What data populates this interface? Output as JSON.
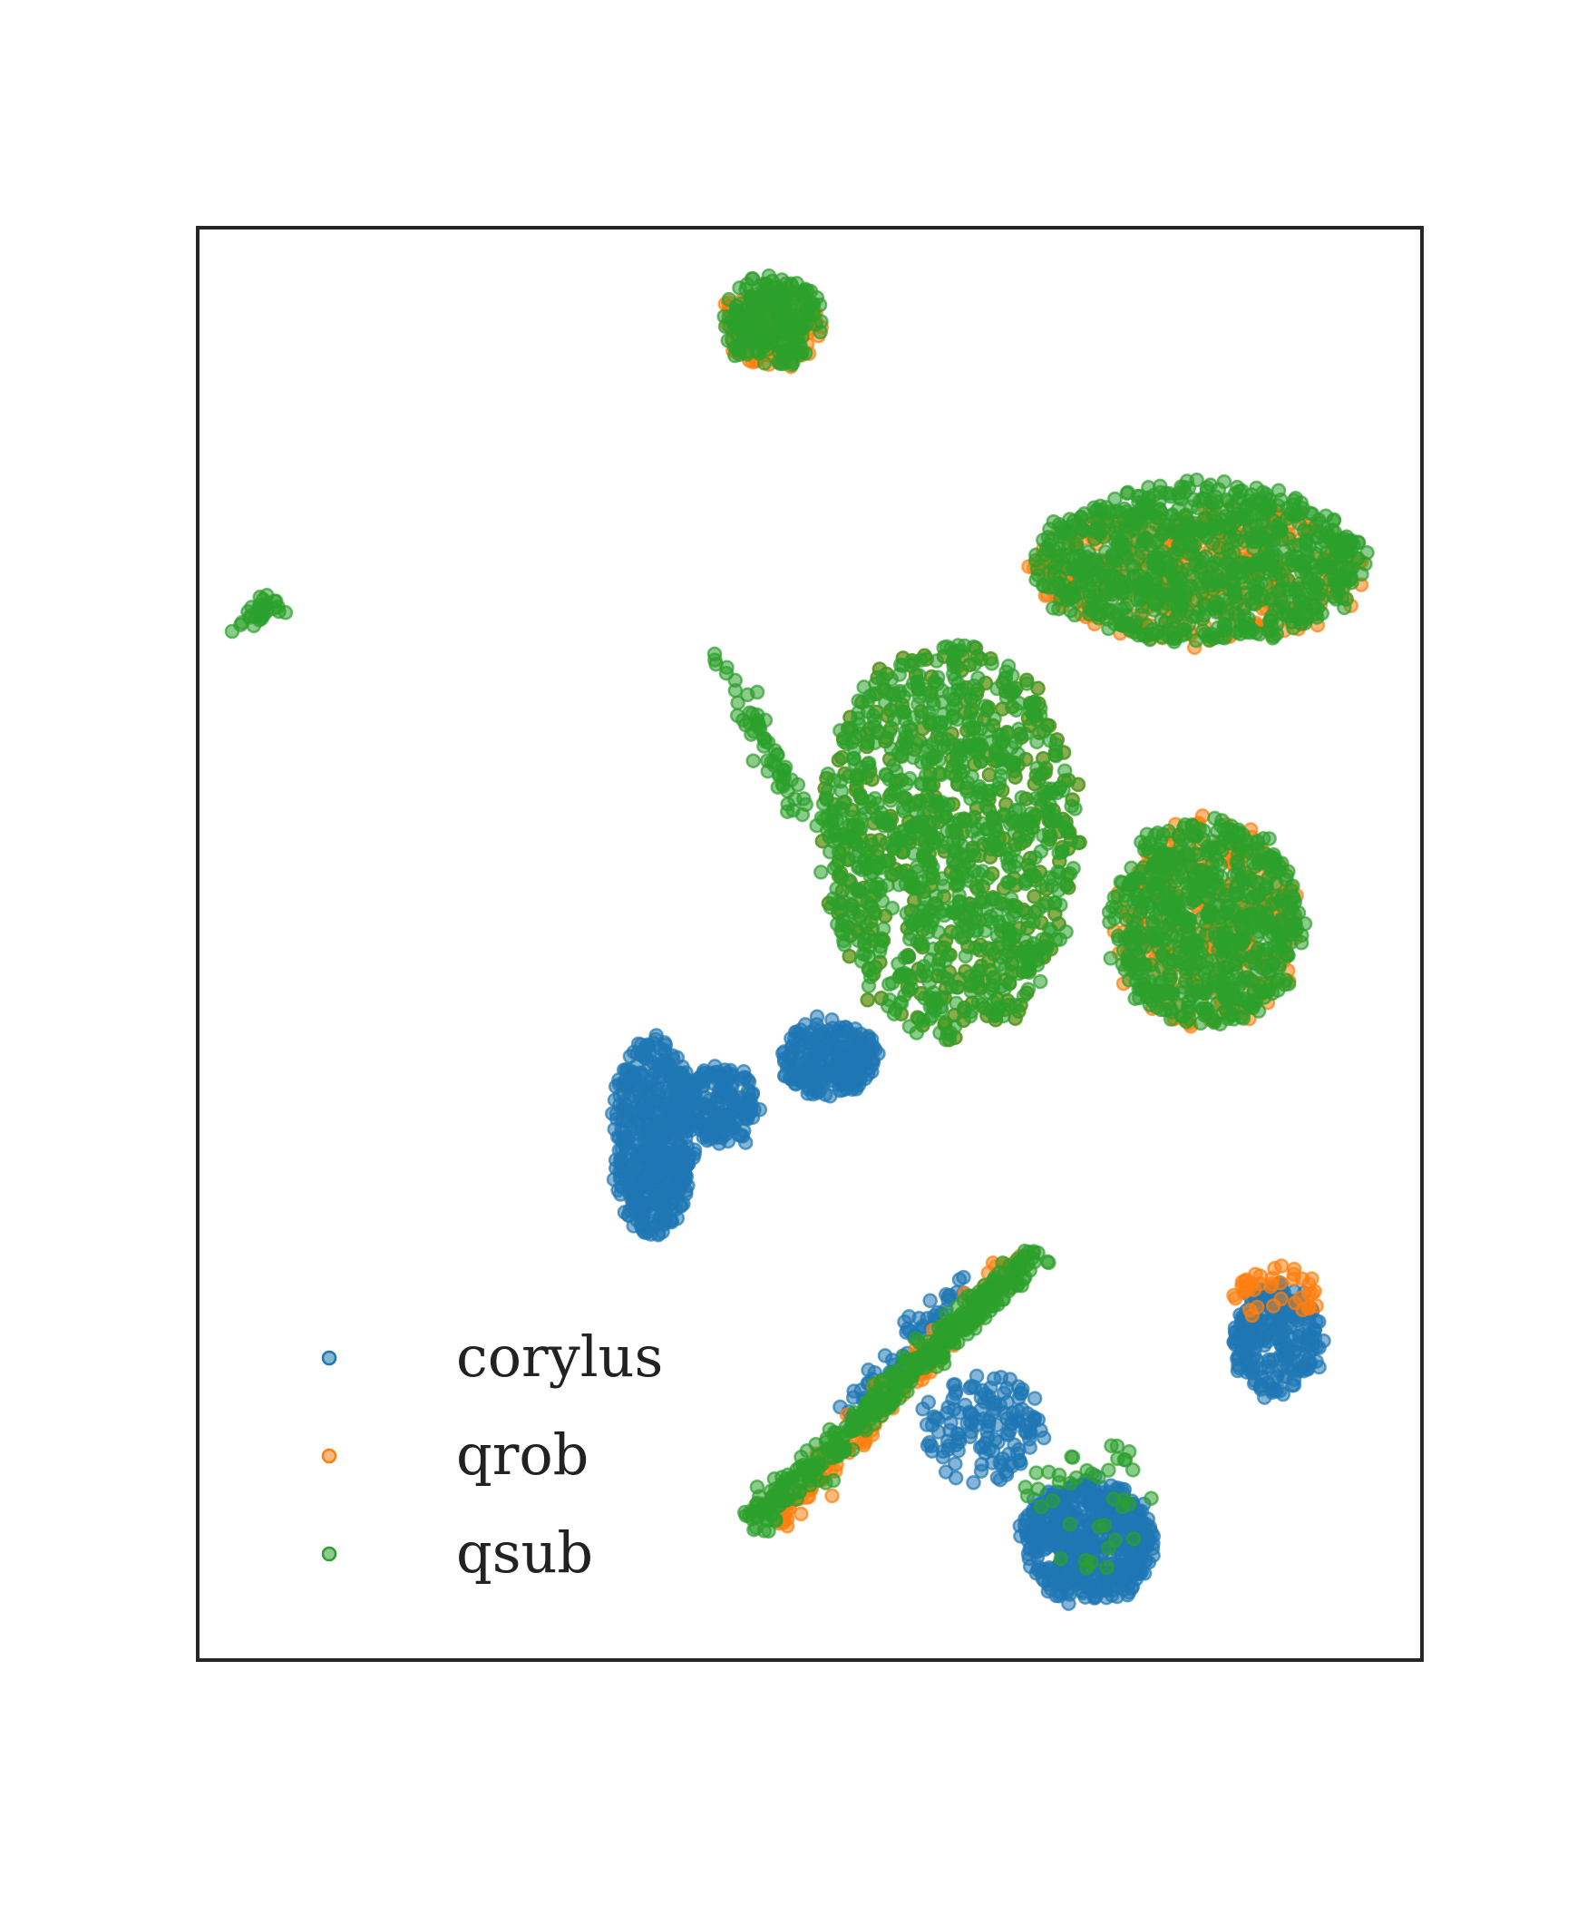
{
  "chart_data": {
    "type": "scatter",
    "title": "",
    "xlabel": "",
    "ylabel": "",
    "axes_ticks": "none",
    "grid": false,
    "legend_position": "bottom-left",
    "series": [
      {
        "name": "corylus",
        "color": "#1f77b4",
        "clusters": [
          {
            "label": "left-blob",
            "x": [
              3.75,
              4.45
            ],
            "y": [
              3.8,
              5.8
            ],
            "n": 520
          },
          {
            "label": "left-lobe",
            "x": [
              4.3,
              5.05
            ],
            "y": [
              4.7,
              5.5
            ],
            "n": 180
          },
          {
            "label": "mid-blob",
            "x": [
              5.25,
              6.1
            ],
            "y": [
              5.2,
              5.95
            ],
            "n": 240
          },
          {
            "label": "bottom-right-blob",
            "x": [
              7.4,
              8.6
            ],
            "y": [
              0.1,
              1.3
            ],
            "n": 520
          },
          {
            "label": "bottom-neck",
            "x": [
              6.5,
              7.6
            ],
            "y": [
              1.3,
              2.4
            ],
            "n": 140
          },
          {
            "label": "far-right-blob",
            "x": [
              9.3,
              10.1
            ],
            "y": [
              2.2,
              3.3
            ],
            "n": 260
          },
          {
            "label": "diagonal-strand",
            "x": [
              5.8,
              6.9
            ],
            "y": [
              1.9,
              3.4
            ],
            "n": 60
          }
        ]
      },
      {
        "name": "qrob",
        "color": "#ff7f0e",
        "clusters": [
          {
            "label": "big-center-blob",
            "x": [
              5.6,
              7.9
            ],
            "y": [
              5.8,
              9.8
            ],
            "n": 520
          },
          {
            "label": "upper-right-blob",
            "x": [
              7.5,
              10.5
            ],
            "y": [
              9.8,
              11.2
            ],
            "n": 420
          },
          {
            "label": "right-ring",
            "x": [
              8.2,
              9.9
            ],
            "y": [
              5.9,
              8.0
            ],
            "n": 300
          },
          {
            "label": "top-small-blob",
            "x": [
              4.7,
              5.6
            ],
            "y": [
              12.6,
              13.4
            ],
            "n": 90
          },
          {
            "label": "diagonal-strand",
            "x": [
              5.2,
              7.4
            ],
            "y": [
              0.9,
              3.6
            ],
            "n": 160
          },
          {
            "label": "far-right-top",
            "x": [
              9.3,
              10.1
            ],
            "y": [
              2.9,
              3.5
            ],
            "n": 40
          }
        ]
      },
      {
        "name": "qsub",
        "color": "#2ca02c",
        "clusters": [
          {
            "label": "big-center-blob",
            "x": [
              5.6,
              7.9
            ],
            "y": [
              5.8,
              9.8
            ],
            "n": 1200
          },
          {
            "label": "upper-right-blob",
            "x": [
              7.5,
              10.5
            ],
            "y": [
              9.8,
              11.4
            ],
            "n": 900
          },
          {
            "label": "right-ring",
            "x": [
              8.2,
              9.9
            ],
            "y": [
              5.9,
              8.0
            ],
            "n": 700
          },
          {
            "label": "top-small-blob",
            "x": [
              4.7,
              5.6
            ],
            "y": [
              12.6,
              13.5
            ],
            "n": 220
          },
          {
            "label": "left-streak",
            "x": [
              0.4,
              0.75
            ],
            "y": [
              9.95,
              10.25
            ],
            "n": 30
          },
          {
            "label": "thin-branch",
            "x": [
              4.7,
              5.4
            ],
            "y": [
              8.1,
              9.7
            ],
            "n": 60
          },
          {
            "label": "diagonal-strand",
            "x": [
              5.0,
              7.5
            ],
            "y": [
              0.9,
              3.6
            ],
            "n": 420
          },
          {
            "label": "bottom-right-blob",
            "x": [
              7.4,
              8.6
            ],
            "y": [
              0.3,
              1.8
            ],
            "n": 40
          }
        ]
      }
    ]
  }
}
